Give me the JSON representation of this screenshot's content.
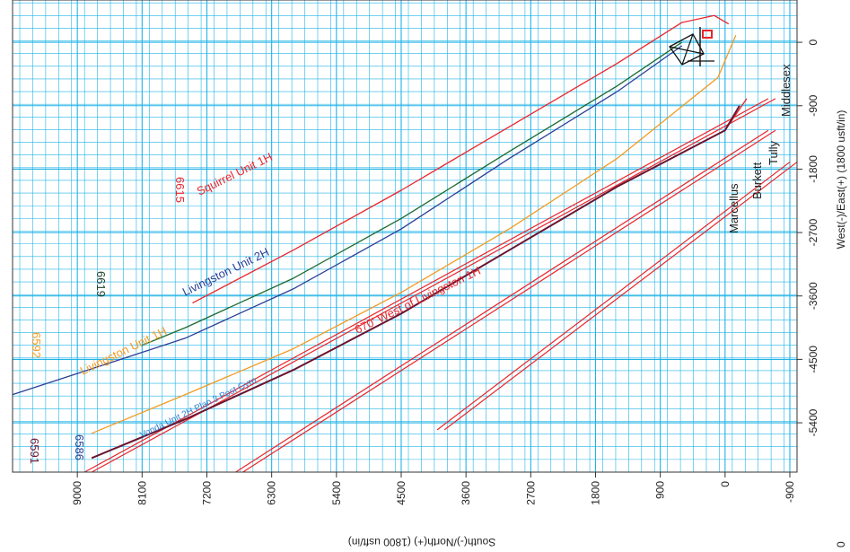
{
  "chart_data": {
    "type": "line",
    "title": "",
    "xlabel": "South(-)/North(+) (1800 usft/in)",
    "ylabel": "West(-)/East(+) (1800 usft/in)",
    "x_axis_direction": "decreasing-left-to-right",
    "xlim": [
      9900,
      -1000
    ],
    "ylim": [
      -6100,
      600
    ],
    "grid": true,
    "grid_color": "#22b3e6",
    "x_ticks": [
      9000,
      8100,
      7200,
      6300,
      5400,
      4500,
      3600,
      2700,
      1800,
      900,
      0,
      -900
    ],
    "x_tick_labels": [
      "9000",
      "8100",
      "7200",
      "6300",
      "5400",
      "4500",
      "3600",
      "2700",
      "1800",
      "900",
      "0",
      "-900"
    ],
    "y_ticks": [
      0,
      -900,
      -1800,
      -2700,
      -3600,
      -4500,
      -5400
    ],
    "y_tick_labels": [
      "0",
      "-900",
      "-1800",
      "-2700",
      "-3600",
      "-4500",
      "-5400"
    ],
    "corner_label": "0",
    "series": [
      {
        "name": "Squirrel Unit 1H",
        "color": "#e8262b",
        "x": [
          -50,
          150,
          600,
          1500,
          3000,
          4500,
          6000,
          7400
        ],
        "y": [
          260,
          380,
          280,
          -300,
          -1200,
          -2100,
          -2950,
          -3700
        ]
      },
      {
        "name": "Livingston Unit 2H",
        "color": "#2b3f96",
        "x": [
          600,
          1500,
          3000,
          4500,
          6000,
          7500,
          9000,
          9900
        ],
        "y": [
          -50,
          -700,
          -1650,
          -2650,
          -3500,
          -4200,
          -4700,
          -5000
        ]
      },
      {
        "name": "",
        "color": "#1b6b2f",
        "x": [
          600,
          1500,
          3000,
          4500,
          6000,
          7500,
          8100
        ],
        "y": [
          0,
          -620,
          -1550,
          -2500,
          -3350,
          -4050,
          -4300
        ]
      },
      {
        "name": "Livingston Unit 1H",
        "color": "#f29b24",
        "x": [
          -150,
          100,
          1500,
          3000,
          4500,
          6000,
          7500,
          8800
        ],
        "y": [
          100,
          -500,
          -1650,
          -2650,
          -3550,
          -4350,
          -5000,
          -5550
        ]
      },
      {
        "name": "670' West of Livingston 1H",
        "color": "#e8262b",
        "x": [
          -300,
          0,
          1500,
          3000,
          4500,
          6000,
          7500,
          8800
        ],
        "y": [
          -800,
          -1250,
          -2050,
          -2950,
          -3850,
          -4650,
          -5350,
          -5900
        ]
      },
      {
        "name": "Vonda Unit 2H Plan 3 Post Gyro",
        "color": "#6b1530",
        "x": [
          -200,
          0,
          1500,
          3000,
          4500,
          6000,
          7500,
          8800
        ],
        "y": [
          -900,
          -1250,
          -2050,
          -2950,
          -3850,
          -4650,
          -5350,
          -5900
        ]
      }
    ],
    "curve_number_labels": [
      {
        "text": "6615",
        "color": "#e8262b"
      },
      {
        "text": "6619",
        "color": "#1b3f2a"
      },
      {
        "text": "6592",
        "color": "#f29b24"
      },
      {
        "text": "6591",
        "color": "#6b1530"
      },
      {
        "text": "6586",
        "color": "#2b3f96"
      }
    ],
    "zone_labels": [
      "Marcellus",
      "Burkett",
      "Tully",
      "Middlesex"
    ]
  }
}
